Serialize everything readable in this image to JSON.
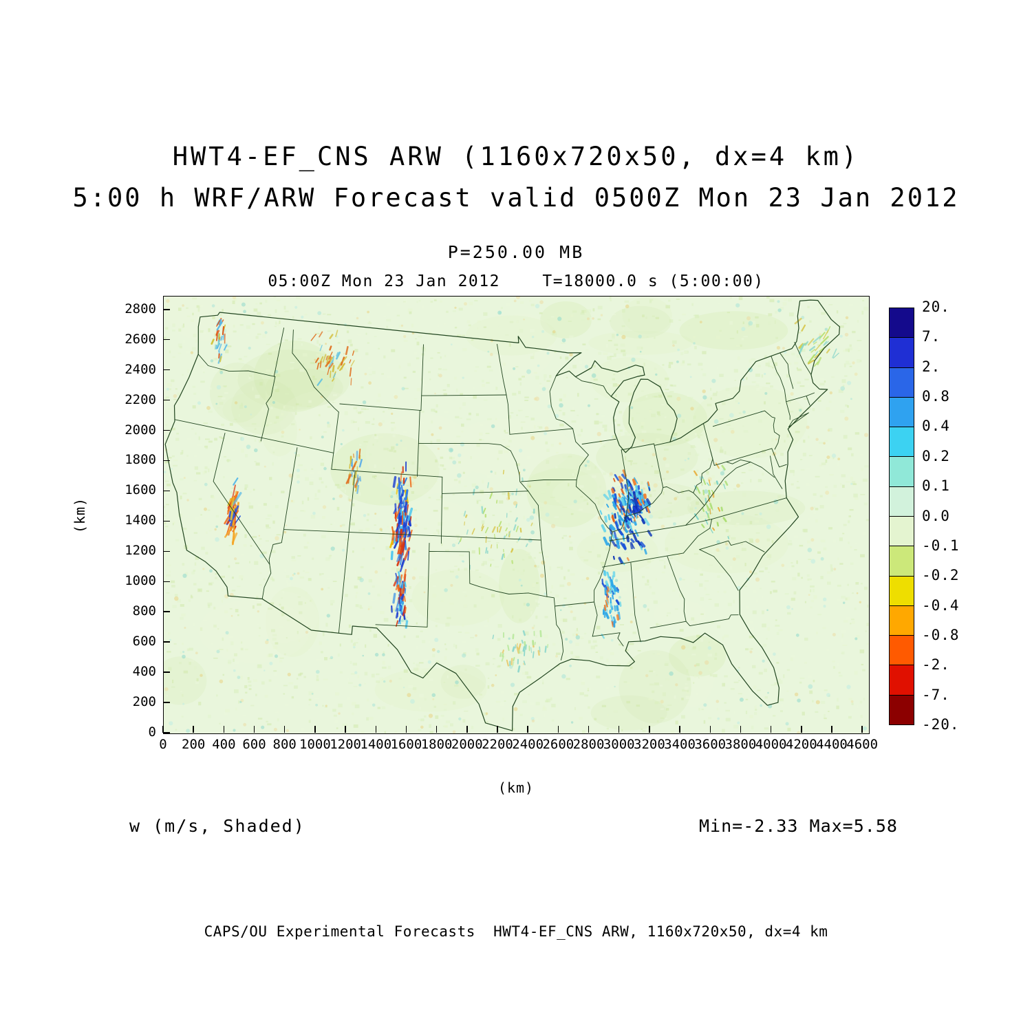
{
  "title": {
    "line1": "HWT4-EF_CNS ARW (1160x720x50, dx=4 km)",
    "line2": "5:00 h WRF/ARW Forecast valid 0500Z Mon 23 Jan 2012"
  },
  "subtitle": {
    "pressure": "P=250.00 MB",
    "time_line": "05:00Z Mon 23 Jan 2012    T=18000.0 s (5:00:00)"
  },
  "axes": {
    "x": {
      "label": "(km)",
      "ticks": [
        0,
        200,
        400,
        600,
        800,
        1000,
        1200,
        1400,
        1600,
        1800,
        2000,
        2200,
        2400,
        2600,
        2800,
        3000,
        3200,
        3400,
        3600,
        3800,
        4000,
        4200,
        4400,
        4600
      ],
      "range_km": [
        0,
        4640
      ]
    },
    "y": {
      "label": "(km)",
      "ticks": [
        0,
        200,
        400,
        600,
        800,
        1000,
        1200,
        1400,
        1600,
        1800,
        2000,
        2200,
        2400,
        2600,
        2800
      ],
      "range_km": [
        0,
        2890
      ]
    }
  },
  "colorbar": {
    "labels": [
      "20.",
      "7.",
      "2.",
      "0.8",
      "0.4",
      "0.2",
      "0.1",
      "0.0",
      "-0.1",
      "-0.2",
      "-0.4",
      "-0.8",
      "-2.",
      "-7.",
      "-20."
    ],
    "colors": [
      "#140a8c",
      "#1f2fd4",
      "#2a66e8",
      "#2fa2f0",
      "#3cd2f2",
      "#90e8d8",
      "#d2f2dc",
      "#e4f4d0",
      "#cce87a",
      "#eede00",
      "#ffa800",
      "#ff5a00",
      "#e01000",
      "#8c0000"
    ]
  },
  "annotations": {
    "field_label": "w (m/s, Shaded)",
    "minmax": "Min=-2.33 Max=5.58"
  },
  "footer": "CAPS/OU Experimental Forecasts  HWT4-EF_CNS ARW, 1160x720x50, dx=4 km",
  "chart_data": {
    "type": "heatmap",
    "title": "HWT4-EF_CNS ARW (1160x720x50, dx=4 km)",
    "subtitle": "5:00 h WRF/ARW Forecast valid 0500Z Mon 23 Jan 2012",
    "model": "HWT4-EF_CNS ARW",
    "grid": "1160x720x50, dx=4 km",
    "field": "w",
    "units": "m/s",
    "render_style": "shaded",
    "pressure_level_mb": 250.0,
    "valid_time": "05:00Z Mon 23 Jan 2012",
    "forecast_length": "5:00 h",
    "forecast_seconds": 18000.0,
    "forecast_hhmmss": "5:00:00",
    "min": -2.33,
    "max": 5.58,
    "x_range_km": [
      0,
      4640
    ],
    "y_range_km": [
      0,
      2890
    ],
    "x_tick_interval_km": 200,
    "y_tick_interval_km": 200,
    "shading_levels": [
      -20,
      -7,
      -2,
      -0.8,
      -0.4,
      -0.2,
      -0.1,
      0.0,
      0.1,
      0.2,
      0.4,
      0.8,
      2,
      7,
      20
    ],
    "palette_top_to_bottom": [
      "#140a8c",
      "#1f2fd4",
      "#2a66e8",
      "#2fa2f0",
      "#3cd2f2",
      "#90e8d8",
      "#d2f2dc",
      "#e4f4d0",
      "#cce87a",
      "#eede00",
      "#ffa800",
      "#ff5a00",
      "#e01000",
      "#8c0000"
    ],
    "region": "Continental United States with state boundaries",
    "background_value_range": "mostly 0.0 to -0.1 m/s (pale green)",
    "notable_features": [
      {
        "region": "Sierra Nevada, eastern California",
        "description": "narrow NNW-SSE mountain-wave couplets of strong updrafts/downdrafts (red/orange with some blue streaks)"
      },
      {
        "region": "Colorado and New Mexico Rockies",
        "description": "banded mountain-wave couplets, mixed strong updrafts (blue) and downdrafts (red/orange)"
      },
      {
        "region": "lower Ohio / Mississippi Valley (IL, IN, KY, TN, MS)",
        "description": "cluster of convective updraft speckles (cyan/deep blue) with embedded orange downdrafts, trailing south along the Mississippi River"
      },
      {
        "region": "Cascades and northern Rockies",
        "description": "weaker scattered wave activity"
      },
      {
        "region": "elsewhere over domain",
        "description": "weak mottled vertical velocities near zero"
      }
    ]
  }
}
